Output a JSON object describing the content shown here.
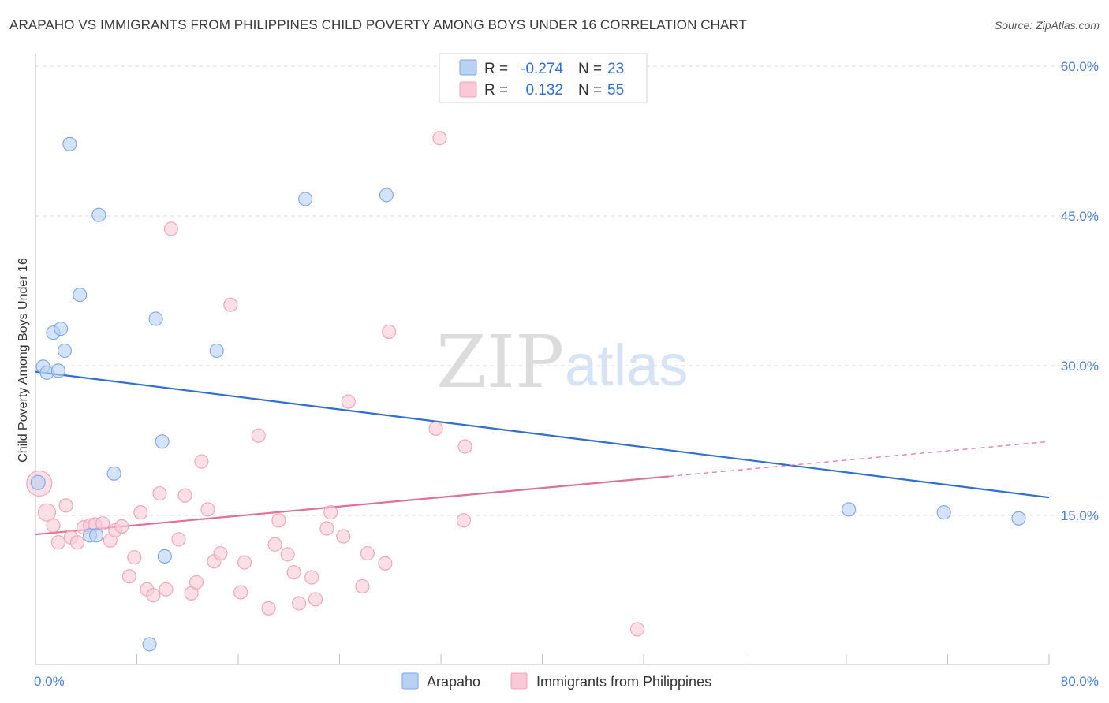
{
  "chart_data": {
    "type": "scatter",
    "title": "ARAPAHO VS IMMIGRANTS FROM PHILIPPINES CHILD POVERTY AMONG BOYS UNDER 16 CORRELATION CHART",
    "source": "Source: ZipAtlas.com",
    "ylabel": "Child Poverty Among Boys Under 16",
    "xlim": [
      0,
      80
    ],
    "ylim": [
      0,
      60
    ],
    "x_tick_labels": [
      "0.0%",
      "80.0%"
    ],
    "y_ticks": [
      15,
      30,
      45,
      60
    ],
    "y_tick_labels": [
      "15.0%",
      "30.0%",
      "45.0%",
      "60.0%"
    ],
    "watermark": {
      "zip": "ZIP",
      "atlas": "atlas"
    },
    "legend": {
      "r_label": "R =",
      "n_label": "N =",
      "rows": [
        {
          "r": "-0.274",
          "n": "23"
        },
        {
          "r": "0.132",
          "n": "55"
        }
      ]
    },
    "series": [
      {
        "name": "Arapaho",
        "color": "#7aa6e8",
        "fill": "#b9d1f3",
        "trend_color": "#2d6fd6",
        "trend": {
          "x0": 0,
          "y0": 29.4,
          "x1": 80,
          "y1": 16.8,
          "solid_until": 80
        },
        "points": [
          [
            0.2,
            18.3
          ],
          [
            0.6,
            29.9
          ],
          [
            0.9,
            29.3
          ],
          [
            1.4,
            33.3
          ],
          [
            1.8,
            29.5
          ],
          [
            2.0,
            33.7
          ],
          [
            2.3,
            31.5
          ],
          [
            2.7,
            52.2
          ],
          [
            3.5,
            37.1
          ],
          [
            4.3,
            13.0
          ],
          [
            4.8,
            13.0
          ],
          [
            5.0,
            45.1
          ],
          [
            6.2,
            19.2
          ],
          [
            9.5,
            34.7
          ],
          [
            10.0,
            22.4
          ],
          [
            10.2,
            10.9
          ],
          [
            9.0,
            2.1
          ],
          [
            14.3,
            31.5
          ],
          [
            21.3,
            46.7
          ],
          [
            27.7,
            47.1
          ],
          [
            64.2,
            15.6
          ],
          [
            71.7,
            15.3
          ],
          [
            77.6,
            14.7
          ]
        ]
      },
      {
        "name": "Immigrants from Philippines",
        "color": "#f0a1b8",
        "fill": "#f9c9d7",
        "trend_color": "#e36e96",
        "trend": {
          "x0": 0,
          "y0": 13.1,
          "x1": 80,
          "y1": 22.4,
          "solid_until": 50
        },
        "points": [
          [
            0.3,
            18.2
          ],
          [
            0.9,
            15.3
          ],
          [
            1.4,
            14.0
          ],
          [
            1.8,
            12.3
          ],
          [
            2.4,
            16.0
          ],
          [
            2.8,
            12.8
          ],
          [
            3.3,
            12.3
          ],
          [
            3.8,
            13.8
          ],
          [
            4.3,
            14.0
          ],
          [
            4.7,
            14.1
          ],
          [
            5.3,
            14.2
          ],
          [
            5.9,
            12.5
          ],
          [
            6.3,
            13.5
          ],
          [
            6.8,
            13.9
          ],
          [
            7.4,
            8.9
          ],
          [
            7.8,
            10.8
          ],
          [
            8.3,
            15.3
          ],
          [
            8.8,
            7.6
          ],
          [
            9.3,
            7.0
          ],
          [
            9.8,
            17.2
          ],
          [
            10.3,
            7.6
          ],
          [
            10.7,
            43.7
          ],
          [
            11.3,
            12.6
          ],
          [
            11.8,
            17.0
          ],
          [
            12.3,
            7.2
          ],
          [
            12.7,
            8.3
          ],
          [
            13.1,
            20.4
          ],
          [
            13.6,
            15.6
          ],
          [
            14.1,
            10.4
          ],
          [
            14.6,
            11.2
          ],
          [
            15.4,
            36.1
          ],
          [
            16.2,
            7.3
          ],
          [
            16.5,
            10.3
          ],
          [
            17.6,
            23.0
          ],
          [
            18.4,
            5.7
          ],
          [
            18.9,
            12.1
          ],
          [
            19.2,
            14.5
          ],
          [
            19.9,
            11.1
          ],
          [
            20.4,
            9.3
          ],
          [
            20.8,
            6.2
          ],
          [
            21.8,
            8.8
          ],
          [
            22.1,
            6.6
          ],
          [
            23.0,
            13.7
          ],
          [
            23.3,
            15.3
          ],
          [
            24.3,
            12.9
          ],
          [
            24.7,
            26.4
          ],
          [
            25.8,
            7.9
          ],
          [
            26.2,
            11.2
          ],
          [
            27.6,
            10.2
          ],
          [
            27.9,
            33.4
          ],
          [
            31.6,
            23.7
          ],
          [
            31.9,
            52.8
          ],
          [
            33.8,
            14.5
          ],
          [
            33.9,
            21.9
          ],
          [
            47.5,
            3.6
          ]
        ]
      }
    ]
  }
}
